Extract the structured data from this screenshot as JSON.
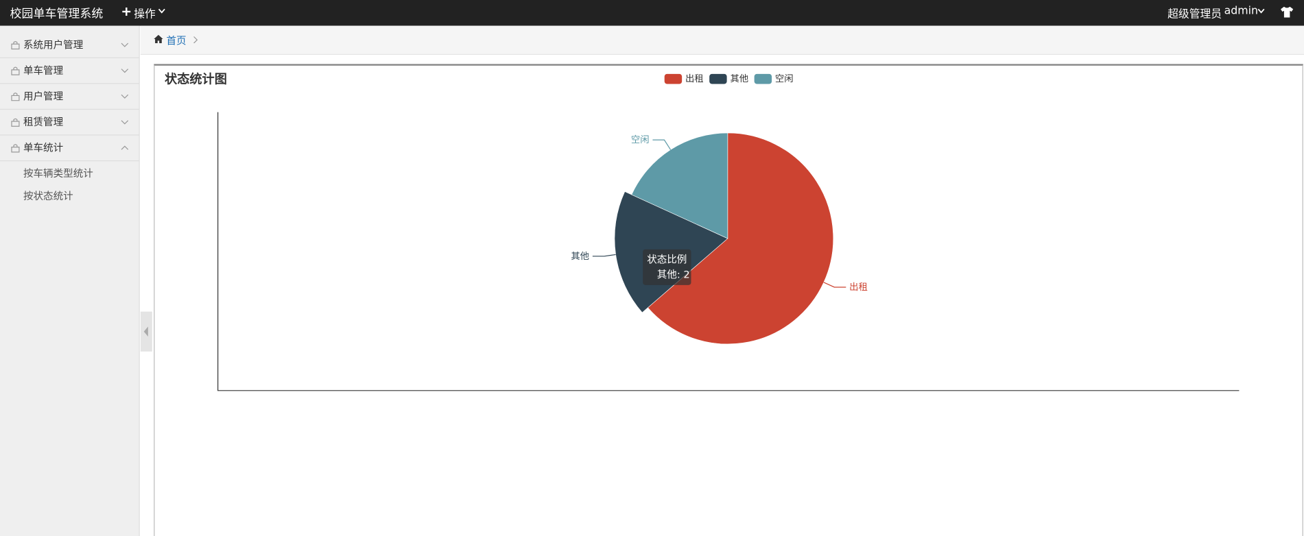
{
  "header": {
    "title": "校园单车管理系统",
    "menu": "操作",
    "role": "超级管理员",
    "user": "admin"
  },
  "sidebar": {
    "groups": [
      {
        "label": "系统用户管理"
      },
      {
        "label": "单车管理"
      },
      {
        "label": "用户管理"
      },
      {
        "label": "租赁管理"
      },
      {
        "label": "单车统计",
        "items": [
          "按车辆类型统计",
          "按状态统计"
        ]
      }
    ]
  },
  "breadcrumb": {
    "home": "首页"
  },
  "chart_data": {
    "type": "pie",
    "title": "状态统计图",
    "series_name": "状态比例",
    "categories": [
      "出租",
      "其他",
      "空闲"
    ],
    "values": [
      7,
      2,
      2
    ],
    "colors": [
      "#cc4331",
      "#2f4554",
      "#5e9aa7"
    ],
    "legend": "top",
    "highlighted": 1,
    "tooltip_text": "其他: 2"
  }
}
